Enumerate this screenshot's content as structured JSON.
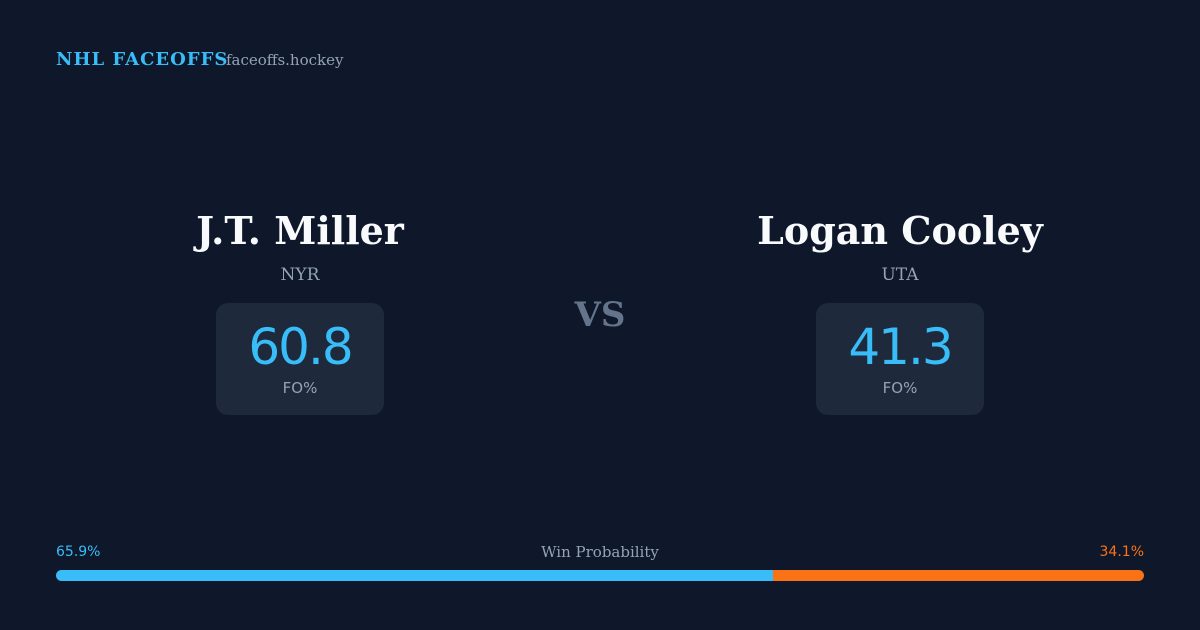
{
  "header": {
    "title": "NHL FACEOFFS",
    "site": "faceoffs.hockey"
  },
  "players": [
    {
      "name": "J.T. Miller",
      "team": "NYR",
      "stat": 60.8,
      "stat_label": "FO%",
      "color": "#38bdf8"
    },
    {
      "name": "Logan Cooley",
      "team": "UTA",
      "stat": 41.3,
      "stat_label": "FO%",
      "color": "#38bdf8"
    }
  ],
  "vs": "VS",
  "win_probability": {
    "label": "Win Probability",
    "values": [
      65.9,
      34.1
    ],
    "value_labels": [
      "65.9%",
      "34.1%"
    ],
    "colors": [
      "#38bdf8",
      "#f97316"
    ]
  }
}
